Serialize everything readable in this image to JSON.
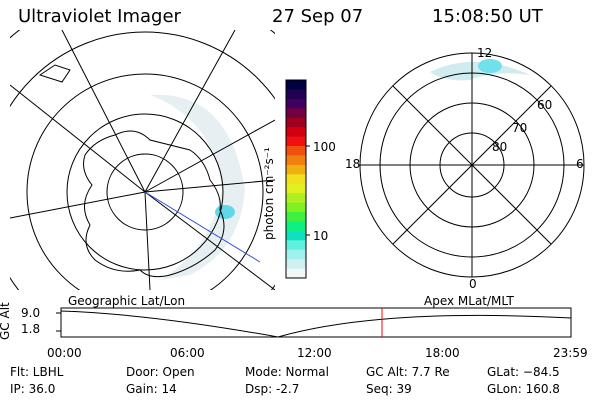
{
  "header": {
    "title": "Ultraviolet Imager",
    "date": "27 Sep 07",
    "time": "15:08:50 UT"
  },
  "colorbar": {
    "unit_label": "photon cm⁻²s⁻¹",
    "ticks": [
      {
        "label": "100",
        "value": 100
      },
      {
        "label": "10",
        "value": 10
      }
    ],
    "colors": [
      "#000040",
      "#200050",
      "#400060",
      "#700040",
      "#a00020",
      "#d00010",
      "#f01010",
      "#f05010",
      "#f08010",
      "#f0b010",
      "#f0e020",
      "#e0f020",
      "#b0f020",
      "#80f020",
      "#40f040",
      "#10f080",
      "#10e0c0",
      "#60f0e0",
      "#a0f0f0",
      "#d0f0f0",
      "#f0f8f8"
    ]
  },
  "polar_plot": {
    "mlt_labels": {
      "top": "12",
      "left": "18",
      "right": "6",
      "bottom": "0"
    },
    "lat_labels": [
      "60",
      "70",
      "80"
    ]
  },
  "timeline": {
    "left_label": "Geographic Lat/Lon",
    "right_label": "Apex MLat/MLT",
    "y_axis_label": "GC Alt",
    "y_ticks": [
      "9.0",
      "1.8"
    ],
    "x_ticks": [
      "00:00",
      "06:00",
      "12:00",
      "18:00",
      "23:59"
    ],
    "marker_color": "#ff0000"
  },
  "info": {
    "flt": "Flt: LBHL",
    "ip": "IP: 36.0",
    "door": "Door: Open",
    "gain": "Gain: 14",
    "mode": "Mode: Normal",
    "dsp": "Dsp:    -2.7",
    "gcalt": "GC Alt: 7.7 Re",
    "seq": "Seq: 39",
    "glat": "GLat: −84.5",
    "glon": "GLon: 160.8"
  }
}
